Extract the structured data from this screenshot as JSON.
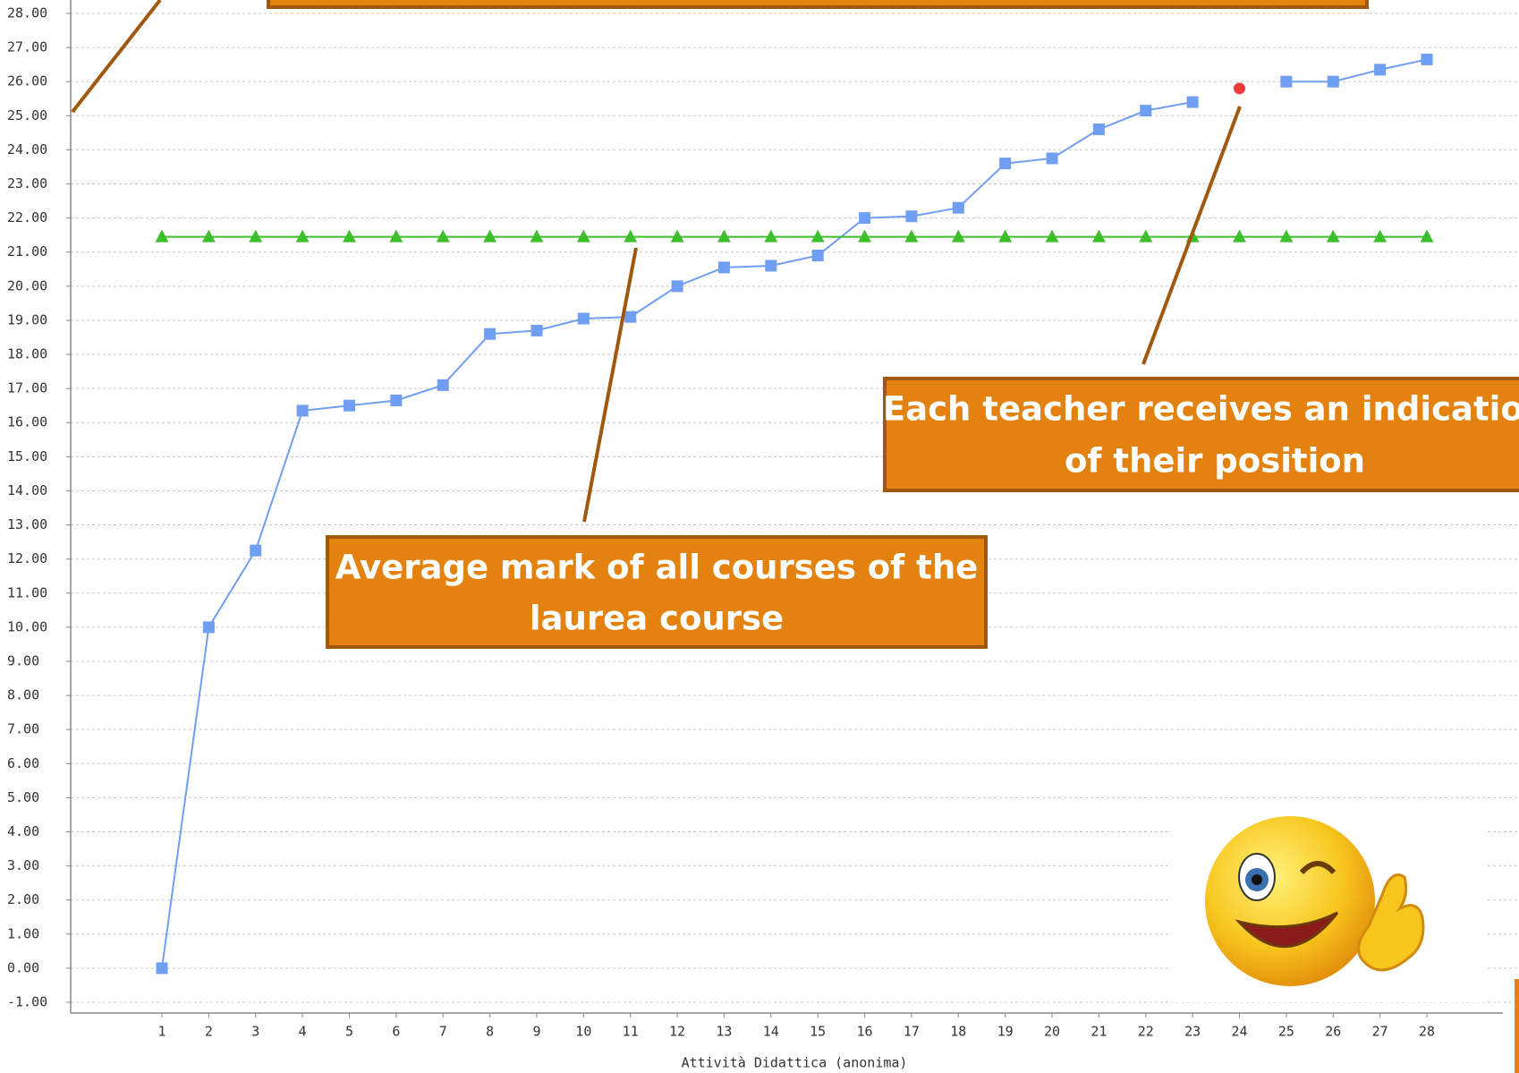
{
  "chart_data": {
    "type": "line",
    "x_label": "Attività Didattica (anonima)",
    "categories": [
      "1",
      "2",
      "3",
      "4",
      "5",
      "6",
      "7",
      "8",
      "9",
      "10",
      "11",
      "12",
      "13",
      "14",
      "15",
      "16",
      "17",
      "18",
      "19",
      "20",
      "21",
      "22",
      "23",
      "24",
      "25",
      "26",
      "27",
      "28"
    ],
    "series": [
      {
        "color": "#6f9ef2",
        "marker": "square",
        "line": true,
        "values": [
          0,
          10,
          12.25,
          16.35,
          16.5,
          16.65,
          17.1,
          18.6,
          18.7,
          19.05,
          19.1,
          20,
          20.55,
          20.6,
          20.9,
          22,
          22.05,
          22.3,
          23.6,
          23.75,
          24.6,
          25.15,
          25.4,
          null,
          26,
          26,
          26.35,
          26.65
        ]
      },
      {
        "color": "#3cbf2a",
        "marker": "triangle",
        "line": true,
        "values": [
          21.45,
          21.45,
          21.45,
          21.45,
          21.45,
          21.45,
          21.45,
          21.45,
          21.45,
          21.45,
          21.45,
          21.45,
          21.45,
          21.45,
          21.45,
          21.45,
          21.45,
          21.45,
          21.45,
          21.45,
          21.45,
          21.45,
          21.45,
          21.45,
          21.45,
          21.45,
          21.45,
          21.45
        ]
      },
      {
        "color": "#f03a3a",
        "marker": "circle",
        "line": false,
        "values": [
          null,
          null,
          null,
          null,
          null,
          null,
          null,
          null,
          null,
          null,
          null,
          null,
          null,
          null,
          null,
          null,
          null,
          null,
          null,
          null,
          null,
          null,
          null,
          25.8,
          null,
          null,
          null,
          null
        ]
      }
    ],
    "ylim": [
      -1,
      28
    ],
    "yticks": [
      {
        "value": -1,
        "label": "-1.00"
      },
      {
        "value": 0,
        "label": "0.00"
      },
      {
        "value": 1,
        "label": "1.00"
      },
      {
        "value": 2,
        "label": "2.00"
      },
      {
        "value": 3,
        "label": "3.00"
      },
      {
        "value": 4,
        "label": "4.00"
      },
      {
        "value": 5,
        "label": "5.00"
      },
      {
        "value": 6,
        "label": "6.00"
      },
      {
        "value": 7,
        "label": "7.00"
      },
      {
        "value": 8,
        "label": "8.00"
      },
      {
        "value": 9,
        "label": "9.00"
      },
      {
        "value": 10,
        "label": "10.00"
      },
      {
        "value": 11,
        "label": "11.00"
      },
      {
        "value": 12,
        "label": "12.00"
      },
      {
        "value": 13,
        "label": "13.00"
      },
      {
        "value": 14,
        "label": "14.00"
      },
      {
        "value": 15,
        "label": "15.00"
      },
      {
        "value": 16,
        "label": "16.00"
      },
      {
        "value": 17,
        "label": "17.00"
      },
      {
        "value": 18,
        "label": "18.00"
      },
      {
        "value": 19,
        "label": "19.00"
      },
      {
        "value": 20,
        "label": "20.00"
      },
      {
        "value": 21,
        "label": "21.00"
      },
      {
        "value": 22,
        "label": "22.00"
      },
      {
        "value": 23,
        "label": "23.00"
      },
      {
        "value": 24,
        "label": "24.00"
      },
      {
        "value": 25,
        "label": "25.00"
      },
      {
        "value": 26,
        "label": "26.00"
      },
      {
        "value": 27,
        "label": "27.00"
      },
      {
        "value": 28,
        "label": "28.00"
      }
    ],
    "grid": true,
    "annotations": [
      {
        "lines": [
          "Each teacher receives an indication",
          "of their position"
        ]
      },
      {
        "lines": [
          "Average mark of all courses of the",
          "laurea course"
        ]
      }
    ]
  }
}
